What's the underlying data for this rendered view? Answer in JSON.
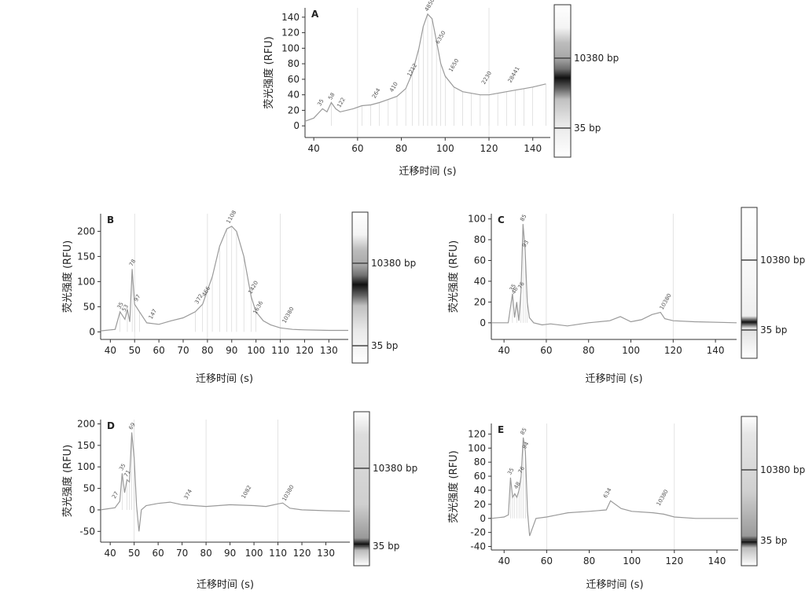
{
  "figure": {
    "colors": {
      "axis": "#333333",
      "trace": "#9a9a9a",
      "grid": "#dcdcdc",
      "text": "#222222",
      "peaklabel": "#555555"
    }
  },
  "chart_data": [
    {
      "panel": "A",
      "type": "line",
      "xlabel": "迁移时间 (s)",
      "ylabel": "荧光强度 (RFU)",
      "xlim": [
        36,
        148
      ],
      "ylim": [
        -15,
        152
      ],
      "xticks": [
        40,
        60,
        80,
        100,
        120,
        140
      ],
      "yticks": [
        0,
        20,
        40,
        60,
        80,
        100,
        120,
        140
      ],
      "x": [
        36,
        40,
        44,
        46,
        48,
        50,
        52,
        55,
        58,
        62,
        66,
        70,
        74,
        78,
        82,
        85,
        88,
        90,
        92,
        94,
        96,
        98,
        100,
        104,
        108,
        112,
        116,
        120,
        124,
        128,
        132,
        136,
        140,
        146
      ],
      "values": [
        6,
        10,
        22,
        18,
        30,
        22,
        18,
        20,
        22,
        26,
        27,
        30,
        34,
        38,
        48,
        68,
        100,
        128,
        144,
        138,
        110,
        80,
        64,
        50,
        44,
        42,
        40,
        40,
        42,
        44,
        46,
        48,
        50,
        54
      ],
      "peak_labels": [
        {
          "x": 43,
          "y": 22,
          "text": "35"
        },
        {
          "x": 48,
          "y": 30,
          "text": "58"
        },
        {
          "x": 52,
          "y": 20,
          "text": "122"
        },
        {
          "x": 68,
          "y": 32,
          "text": "264"
        },
        {
          "x": 76,
          "y": 40,
          "text": "410"
        },
        {
          "x": 84,
          "y": 60,
          "text": "1212"
        },
        {
          "x": 92,
          "y": 144,
          "text": "4850"
        },
        {
          "x": 97,
          "y": 102,
          "text": "6350"
        },
        {
          "x": 103,
          "y": 66,
          "text": "1650"
        },
        {
          "x": 118,
          "y": 50,
          "text": "2230"
        },
        {
          "x": 130,
          "y": 52,
          "text": "28441"
        }
      ],
      "ladder": {
        "upper_label": "10380 bp",
        "lower_label": "35 bp"
      }
    },
    {
      "panel": "B",
      "type": "line",
      "xlabel": "迁移时间 (s)",
      "ylabel": "荧光强度 (RFU)",
      "xlim": [
        36,
        138
      ],
      "ylim": [
        -15,
        235
      ],
      "xticks": [
        40,
        50,
        60,
        70,
        80,
        90,
        100,
        110,
        120,
        130
      ],
      "yticks": [
        0,
        50,
        100,
        150,
        200
      ],
      "x": [
        36,
        42,
        44,
        46,
        47,
        48,
        49,
        50,
        52,
        55,
        60,
        65,
        70,
        75,
        78,
        82,
        85,
        88,
        90,
        92,
        95,
        98,
        100,
        103,
        106,
        110,
        115,
        120,
        130,
        138
      ],
      "values": [
        2,
        5,
        40,
        25,
        45,
        20,
        125,
        55,
        40,
        18,
        15,
        22,
        28,
        40,
        55,
        110,
        170,
        205,
        210,
        200,
        150,
        70,
        40,
        22,
        14,
        8,
        5,
        4,
        3,
        3
      ],
      "peak_labels": [
        {
          "x": 44,
          "y": 40,
          "text": "35"
        },
        {
          "x": 46,
          "y": 35,
          "text": "53"
        },
        {
          "x": 49,
          "y": 125,
          "text": "78"
        },
        {
          "x": 51,
          "y": 55,
          "text": "97"
        },
        {
          "x": 57,
          "y": 20,
          "text": "147"
        },
        {
          "x": 76,
          "y": 50,
          "text": "372"
        },
        {
          "x": 79,
          "y": 65,
          "text": "466"
        },
        {
          "x": 89,
          "y": 210,
          "text": "1108"
        },
        {
          "x": 98,
          "y": 70,
          "text": "1420"
        },
        {
          "x": 100,
          "y": 30,
          "text": "1636"
        },
        {
          "x": 112,
          "y": 12,
          "text": "10380"
        }
      ],
      "ladder": {
        "upper_label": "10380 bp",
        "lower_label": "35 bp"
      }
    },
    {
      "panel": "C",
      "type": "line",
      "xlabel": "迁移时间 (s)",
      "ylabel": "荧光强度 (RFU)",
      "xlim": [
        34,
        150
      ],
      "ylim": [
        -16,
        105
      ],
      "xticks": [
        40,
        60,
        80,
        100,
        120,
        140
      ],
      "yticks": [
        0,
        20,
        40,
        60,
        80,
        100
      ],
      "x": [
        34,
        42,
        44,
        45,
        46,
        47,
        48,
        49,
        50,
        51,
        52,
        54,
        58,
        62,
        70,
        80,
        90,
        95,
        100,
        105,
        110,
        114,
        116,
        120,
        130,
        150
      ],
      "values": [
        0,
        0,
        28,
        5,
        20,
        2,
        30,
        95,
        70,
        20,
        5,
        0,
        -2,
        -1,
        -3,
        0,
        2,
        6,
        1,
        3,
        8,
        10,
        4,
        2,
        1,
        0
      ],
      "peak_labels": [
        {
          "x": 44,
          "y": 28,
          "text": "35"
        },
        {
          "x": 45,
          "y": 25,
          "text": "46"
        },
        {
          "x": 48,
          "y": 30,
          "text": "76"
        },
        {
          "x": 49,
          "y": 95,
          "text": "85"
        },
        {
          "x": 50,
          "y": 70,
          "text": "93"
        },
        {
          "x": 115,
          "y": 10,
          "text": "10380"
        }
      ],
      "ladder": {
        "upper_label": "10380 bp",
        "lower_label": "35 bp"
      }
    },
    {
      "panel": "D",
      "type": "line",
      "xlabel": "迁移时间 (s)",
      "ylabel": "荧光强度 (RFU)",
      "xlim": [
        36,
        140
      ],
      "ylim": [
        -75,
        210
      ],
      "xticks": [
        40,
        50,
        60,
        70,
        80,
        90,
        100,
        110,
        120,
        130
      ],
      "yticks": [
        -50,
        0,
        50,
        100,
        150,
        200
      ],
      "x": [
        36,
        42,
        44,
        45,
        46,
        47,
        48,
        49,
        50,
        51,
        52,
        53,
        55,
        60,
        65,
        70,
        80,
        90,
        100,
        105,
        110,
        112,
        115,
        120,
        130,
        140
      ],
      "values": [
        0,
        5,
        20,
        85,
        40,
        70,
        65,
        180,
        120,
        10,
        -50,
        0,
        10,
        15,
        18,
        12,
        8,
        12,
        10,
        8,
        14,
        16,
        4,
        0,
        -2,
        -3
      ],
      "peak_labels": [
        {
          "x": 42,
          "y": 20,
          "text": "27"
        },
        {
          "x": 45,
          "y": 85,
          "text": "35"
        },
        {
          "x": 47,
          "y": 70,
          "text": "71"
        },
        {
          "x": 49,
          "y": 180,
          "text": "69"
        },
        {
          "x": 72,
          "y": 18,
          "text": "374"
        },
        {
          "x": 96,
          "y": 20,
          "text": "1082"
        },
        {
          "x": 113,
          "y": 14,
          "text": "10380"
        }
      ],
      "ladder": {
        "upper_label": "10380 bp",
        "lower_label": "35 bp"
      }
    },
    {
      "panel": "E",
      "type": "line",
      "xlabel": "迁移时间 (s)",
      "ylabel": "荧光强度 (RFU)",
      "xlim": [
        34,
        150
      ],
      "ylim": [
        -45,
        135
      ],
      "xticks": [
        40,
        60,
        80,
        100,
        120,
        140
      ],
      "yticks": [
        -40,
        -20,
        0,
        20,
        40,
        60,
        80,
        100,
        120
      ],
      "x": [
        34,
        40,
        42,
        43,
        44,
        45,
        46,
        47,
        48,
        49,
        50,
        51,
        52,
        55,
        60,
        65,
        70,
        80,
        88,
        90,
        95,
        100,
        110,
        115,
        120,
        130,
        150
      ],
      "values": [
        0,
        2,
        5,
        58,
        30,
        35,
        30,
        40,
        60,
        115,
        95,
        10,
        -25,
        0,
        2,
        5,
        8,
        10,
        12,
        25,
        14,
        10,
        8,
        6,
        2,
        0,
        0
      ],
      "peak_labels": [
        {
          "x": 43,
          "y": 58,
          "text": "35"
        },
        {
          "x": 46,
          "y": 38,
          "text": "48"
        },
        {
          "x": 48,
          "y": 60,
          "text": "76"
        },
        {
          "x": 49,
          "y": 115,
          "text": "85"
        },
        {
          "x": 50,
          "y": 95,
          "text": "94"
        },
        {
          "x": 88,
          "y": 25,
          "text": "634"
        },
        {
          "x": 113,
          "y": 14,
          "text": "10380"
        }
      ],
      "ladder": {
        "upper_label": "10380 bp",
        "lower_label": "35 bp"
      }
    }
  ]
}
